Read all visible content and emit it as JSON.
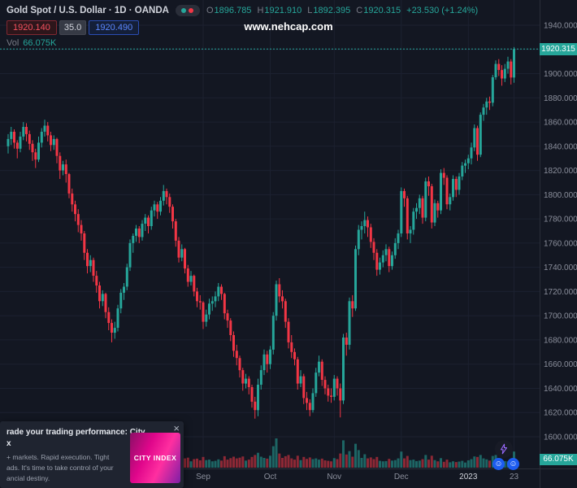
{
  "header": {
    "symbol_title": "Gold Spot / U.S. Dollar · 1D · OANDA",
    "ohlc": {
      "o_label": "O",
      "o_value": "1896.785",
      "h_label": "H",
      "h_value": "1921.910",
      "l_label": "L",
      "l_value": "1892.395",
      "c_label": "C",
      "c_value": "1920.315",
      "change": "+23.530 (+1.24%)"
    },
    "sell_price": "1920.140",
    "spread": "35.0",
    "buy_price": "1920.490",
    "vol_label": "Vol",
    "vol_value": "66.075K"
  },
  "watermark": "www.nehcap.com",
  "axis": {
    "last_price_label": "1920.315",
    "volume_badge_label": "66.075K"
  },
  "ad": {
    "title_line1": "rade your trading performance: City",
    "title_line2": "x",
    "body_line1": "+ markets. Rapid execution. Tight",
    "body_line2": "ads. It's time to take control of your",
    "body_line3": "ancial destiny.",
    "brand": "CITY INDEX",
    "close_label": "×"
  },
  "corner": {
    "reaction_icon": "☺"
  },
  "colors": {
    "background": "#131722",
    "grid": "#1c2130",
    "axis_text": "#8b8f9c",
    "year_tick_text": "#d1d4dc",
    "up": "#26a69a",
    "down": "#f23645",
    "buy_blue": "#2962ff",
    "sell_red": "#f7525f",
    "badge_green": "#26a69a",
    "watermark_text": "#ffffff"
  },
  "chart_data": {
    "type": "candlestick",
    "title": "Gold Spot / U.S. Dollar · 1D · OANDA",
    "symbol": "Gold Spot / U.S. Dollar",
    "interval": "1D",
    "exchange": "OANDA",
    "last_price": 1920.315,
    "last_ohlc": {
      "open": 1896.785,
      "high": 1921.91,
      "low": 1892.395,
      "close": 1920.315,
      "change": 23.53,
      "change_pct": 1.24
    },
    "last_volume_display": "66.075K",
    "price_range": [
      1600,
      1940
    ],
    "grid": true,
    "y_ticks": [
      [
        1940,
        "1940.000"
      ],
      [
        1920,
        "1920.000"
      ],
      [
        1900,
        "1900.000"
      ],
      [
        1880,
        "1880.000"
      ],
      [
        1860,
        "1860.000"
      ],
      [
        1840,
        "1840.000"
      ],
      [
        1820,
        "1820.000"
      ],
      [
        1800,
        "1800.000"
      ],
      [
        1780,
        "1780.000"
      ],
      [
        1760,
        "1760.000"
      ],
      [
        1740,
        "1740.000"
      ],
      [
        1720,
        "1720.000"
      ],
      [
        1700,
        "1700.000"
      ],
      [
        1680,
        "1680.000"
      ],
      [
        1660,
        "1660.000"
      ],
      [
        1640,
        "1640.000"
      ],
      [
        1620,
        "1620.000"
      ],
      [
        1600,
        "1600.000"
      ]
    ],
    "x_ticks": [
      [
        64,
        "Sep"
      ],
      [
        86,
        "Oct"
      ],
      [
        107,
        "Nov"
      ],
      [
        129,
        "Dec"
      ],
      [
        151,
        "2023"
      ],
      [
        166,
        "23"
      ]
    ],
    "volume_unit": "K",
    "candles_format": [
      "open",
      "high",
      "low",
      "close",
      "volume_K"
    ],
    "candles": [
      [
        1840,
        1850,
        1834,
        1846,
        32
      ],
      [
        1846,
        1856,
        1841,
        1852,
        32
      ],
      [
        1852,
        1854,
        1838,
        1843,
        30
      ],
      [
        1843,
        1845,
        1830,
        1838,
        34
      ],
      [
        1838,
        1852,
        1835,
        1848,
        29
      ],
      [
        1848,
        1860,
        1845,
        1856,
        31
      ],
      [
        1856,
        1859,
        1844,
        1850,
        27
      ],
      [
        1850,
        1853,
        1837,
        1842,
        30
      ],
      [
        1842,
        1845,
        1828,
        1835,
        33
      ],
      [
        1835,
        1838,
        1822,
        1829,
        31
      ],
      [
        1829,
        1848,
        1827,
        1843,
        35
      ],
      [
        1843,
        1855,
        1839,
        1852,
        32
      ],
      [
        1852,
        1862,
        1848,
        1857,
        30
      ],
      [
        1857,
        1860,
        1844,
        1849,
        28
      ],
      [
        1849,
        1852,
        1836,
        1841,
        33
      ],
      [
        1841,
        1849,
        1837,
        1846,
        27
      ],
      [
        1846,
        1847,
        1826,
        1832,
        41
      ],
      [
        1832,
        1835,
        1813,
        1820,
        46
      ],
      [
        1820,
        1828,
        1816,
        1825,
        29
      ],
      [
        1825,
        1829,
        1810,
        1817,
        34
      ],
      [
        1817,
        1818,
        1797,
        1801,
        44
      ],
      [
        1801,
        1805,
        1786,
        1792,
        39
      ],
      [
        1792,
        1795,
        1778,
        1784,
        37
      ],
      [
        1784,
        1788,
        1769,
        1775,
        40
      ],
      [
        1775,
        1779,
        1762,
        1768,
        35
      ],
      [
        1768,
        1770,
        1746,
        1752,
        48
      ],
      [
        1752,
        1755,
        1735,
        1741,
        45
      ],
      [
        1741,
        1750,
        1736,
        1746,
        30
      ],
      [
        1746,
        1748,
        1728,
        1733,
        36
      ],
      [
        1733,
        1737,
        1719,
        1725,
        33
      ],
      [
        1725,
        1728,
        1706,
        1712,
        47
      ],
      [
        1712,
        1721,
        1708,
        1718,
        28
      ],
      [
        1718,
        1719,
        1698,
        1703,
        39
      ],
      [
        1703,
        1707,
        1688,
        1694,
        42
      ],
      [
        1694,
        1697,
        1678,
        1686,
        46
      ],
      [
        1686,
        1695,
        1681,
        1690,
        31
      ],
      [
        1690,
        1709,
        1687,
        1706,
        38
      ],
      [
        1706,
        1722,
        1702,
        1719,
        35
      ],
      [
        1719,
        1727,
        1713,
        1724,
        29
      ],
      [
        1724,
        1743,
        1721,
        1740,
        41
      ],
      [
        1740,
        1763,
        1737,
        1760,
        49
      ],
      [
        1760,
        1768,
        1752,
        1766,
        33
      ],
      [
        1766,
        1775,
        1761,
        1772,
        29
      ],
      [
        1772,
        1774,
        1760,
        1765,
        27
      ],
      [
        1765,
        1779,
        1762,
        1776,
        31
      ],
      [
        1776,
        1784,
        1770,
        1781,
        28
      ],
      [
        1781,
        1783,
        1768,
        1774,
        30
      ],
      [
        1774,
        1790,
        1771,
        1787,
        35
      ],
      [
        1787,
        1795,
        1782,
        1792,
        32
      ],
      [
        1792,
        1794,
        1780,
        1786,
        26
      ],
      [
        1786,
        1798,
        1783,
        1795,
        29
      ],
      [
        1795,
        1808,
        1791,
        1803,
        38
      ],
      [
        1803,
        1805,
        1792,
        1798,
        27
      ],
      [
        1798,
        1801,
        1785,
        1790,
        28
      ],
      [
        1790,
        1792,
        1772,
        1778,
        36
      ],
      [
        1778,
        1780,
        1757,
        1762,
        40
      ],
      [
        1762,
        1765,
        1744,
        1748,
        42
      ],
      [
        1748,
        1759,
        1745,
        1755,
        27
      ],
      [
        1755,
        1756,
        1735,
        1739,
        38
      ],
      [
        1739,
        1742,
        1724,
        1728,
        41
      ],
      [
        1728,
        1737,
        1725,
        1733,
        26
      ],
      [
        1733,
        1734,
        1716,
        1720,
        35
      ],
      [
        1720,
        1723,
        1707,
        1712,
        37
      ],
      [
        1712,
        1717,
        1705,
        1711,
        30
      ],
      [
        1711,
        1712,
        1689,
        1695,
        44
      ],
      [
        1695,
        1705,
        1691,
        1701,
        31
      ],
      [
        1701,
        1714,
        1697,
        1710,
        33
      ],
      [
        1710,
        1716,
        1704,
        1712,
        26
      ],
      [
        1712,
        1720,
        1707,
        1716,
        28
      ],
      [
        1716,
        1727,
        1712,
        1724,
        34
      ],
      [
        1724,
        1726,
        1713,
        1718,
        29
      ],
      [
        1718,
        1719,
        1697,
        1702,
        47
      ],
      [
        1702,
        1705,
        1690,
        1696,
        33
      ],
      [
        1696,
        1698,
        1679,
        1684,
        39
      ],
      [
        1684,
        1687,
        1666,
        1671,
        45
      ],
      [
        1671,
        1676,
        1659,
        1665,
        38
      ],
      [
        1665,
        1667,
        1649,
        1655,
        41
      ],
      [
        1655,
        1657,
        1638,
        1644,
        46
      ],
      [
        1644,
        1652,
        1640,
        1648,
        29
      ],
      [
        1648,
        1650,
        1635,
        1641,
        33
      ],
      [
        1641,
        1643,
        1624,
        1629,
        44
      ],
      [
        1629,
        1633,
        1615,
        1622,
        52
      ],
      [
        1622,
        1648,
        1617,
        1643,
        61
      ],
      [
        1643,
        1659,
        1639,
        1655,
        45
      ],
      [
        1655,
        1672,
        1651,
        1668,
        40
      ],
      [
        1668,
        1671,
        1653,
        1660,
        37
      ],
      [
        1660,
        1675,
        1656,
        1672,
        49
      ],
      [
        1672,
        1703,
        1668,
        1700,
        88
      ],
      [
        1700,
        1729,
        1696,
        1726,
        120
      ],
      [
        1726,
        1731,
        1711,
        1716,
        58
      ],
      [
        1716,
        1721,
        1706,
        1712,
        40
      ],
      [
        1712,
        1714,
        1690,
        1695,
        47
      ],
      [
        1695,
        1698,
        1673,
        1678,
        52
      ],
      [
        1678,
        1684,
        1665,
        1670,
        38
      ],
      [
        1670,
        1673,
        1659,
        1664,
        33
      ],
      [
        1664,
        1666,
        1639,
        1644,
        49
      ],
      [
        1644,
        1655,
        1641,
        1650,
        31
      ],
      [
        1650,
        1652,
        1627,
        1632,
        44
      ],
      [
        1632,
        1637,
        1622,
        1628,
        36
      ],
      [
        1628,
        1631,
        1617,
        1622,
        42
      ],
      [
        1622,
        1640,
        1620,
        1636,
        35
      ],
      [
        1636,
        1657,
        1633,
        1653,
        38
      ],
      [
        1653,
        1667,
        1650,
        1662,
        33
      ],
      [
        1662,
        1664,
        1642,
        1647,
        37
      ],
      [
        1647,
        1650,
        1635,
        1640,
        30
      ],
      [
        1640,
        1643,
        1629,
        1634,
        28
      ],
      [
        1634,
        1640,
        1628,
        1633,
        26
      ],
      [
        1633,
        1651,
        1630,
        1648,
        39
      ],
      [
        1648,
        1650,
        1634,
        1640,
        35
      ],
      [
        1640,
        1644,
        1616,
        1630,
        58
      ],
      [
        1630,
        1685,
        1627,
        1682,
        112
      ],
      [
        1682,
        1686,
        1667,
        1676,
        54
      ],
      [
        1676,
        1715,
        1672,
        1712,
        68
      ],
      [
        1712,
        1717,
        1699,
        1706,
        45
      ],
      [
        1706,
        1758,
        1704,
        1755,
        98
      ],
      [
        1755,
        1775,
        1750,
        1771,
        72
      ],
      [
        1771,
        1778,
        1763,
        1774,
        40
      ],
      [
        1774,
        1786,
        1768,
        1779,
        55
      ],
      [
        1779,
        1782,
        1765,
        1773,
        38
      ],
      [
        1773,
        1776,
        1756,
        1761,
        42
      ],
      [
        1761,
        1764,
        1746,
        1752,
        35
      ],
      [
        1752,
        1755,
        1733,
        1738,
        44
      ],
      [
        1738,
        1748,
        1734,
        1744,
        28
      ],
      [
        1744,
        1754,
        1740,
        1750,
        26
      ],
      [
        1750,
        1759,
        1745,
        1755,
        27
      ],
      [
        1755,
        1757,
        1736,
        1741,
        36
      ],
      [
        1741,
        1753,
        1738,
        1750,
        29
      ],
      [
        1750,
        1764,
        1747,
        1760,
        31
      ],
      [
        1760,
        1771,
        1755,
        1768,
        38
      ],
      [
        1768,
        1806,
        1765,
        1803,
        66
      ],
      [
        1803,
        1805,
        1790,
        1797,
        38
      ],
      [
        1797,
        1799,
        1763,
        1768,
        48
      ],
      [
        1768,
        1774,
        1760,
        1771,
        31
      ],
      [
        1771,
        1789,
        1767,
        1786,
        33
      ],
      [
        1786,
        1793,
        1780,
        1789,
        27
      ],
      [
        1789,
        1800,
        1784,
        1797,
        29
      ],
      [
        1797,
        1799,
        1776,
        1781,
        35
      ],
      [
        1781,
        1814,
        1778,
        1811,
        52
      ],
      [
        1811,
        1815,
        1799,
        1807,
        33
      ],
      [
        1807,
        1809,
        1772,
        1777,
        49
      ],
      [
        1777,
        1796,
        1774,
        1793,
        31
      ],
      [
        1793,
        1795,
        1781,
        1787,
        26
      ],
      [
        1787,
        1821,
        1784,
        1818,
        39
      ],
      [
        1818,
        1822,
        1808,
        1814,
        24
      ],
      [
        1814,
        1816,
        1788,
        1792,
        33
      ],
      [
        1792,
        1801,
        1787,
        1798,
        22
      ],
      [
        1798,
        1816,
        1795,
        1813,
        26
      ],
      [
        1813,
        1815,
        1798,
        1804,
        23
      ],
      [
        1804,
        1818,
        1800,
        1815,
        25
      ],
      [
        1815,
        1827,
        1812,
        1824,
        28
      ],
      [
        1824,
        1829,
        1818,
        1826,
        21
      ],
      [
        1826,
        1833,
        1821,
        1830,
        30
      ],
      [
        1830,
        1843,
        1825,
        1839,
        35
      ],
      [
        1839,
        1858,
        1836,
        1855,
        46
      ],
      [
        1855,
        1857,
        1828,
        1833,
        44
      ],
      [
        1833,
        1868,
        1831,
        1866,
        52
      ],
      [
        1866,
        1875,
        1861,
        1872,
        38
      ],
      [
        1872,
        1880,
        1866,
        1877,
        34
      ],
      [
        1877,
        1881,
        1870,
        1876,
        29
      ],
      [
        1876,
        1899,
        1873,
        1897,
        48
      ],
      [
        1897,
        1911,
        1895,
        1908,
        52
      ],
      [
        1908,
        1912,
        1898,
        1903,
        33
      ],
      [
        1903,
        1907,
        1890,
        1896,
        31
      ],
      [
        1896,
        1908,
        1893,
        1904,
        27
      ],
      [
        1904,
        1914,
        1900,
        1910,
        26
      ],
      [
        1910,
        1912,
        1891,
        1896.785,
        33
      ],
      [
        1896.785,
        1921.91,
        1892.395,
        1920.315,
        66.075
      ]
    ]
  }
}
